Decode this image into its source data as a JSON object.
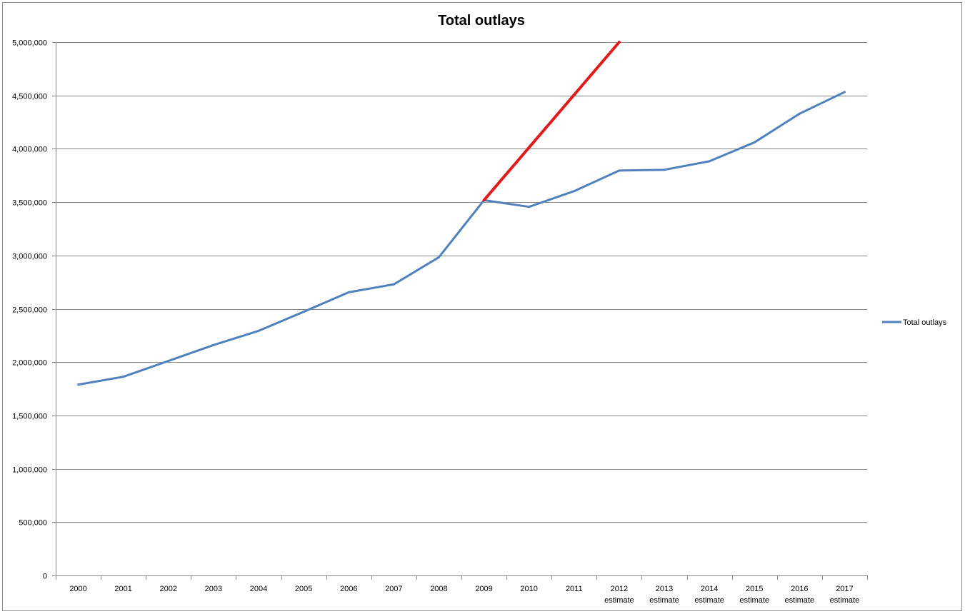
{
  "chart_data": {
    "type": "line",
    "title": "Total outlays",
    "xlabel": "",
    "ylabel": "",
    "categories": [
      "2000",
      "2001",
      "2002",
      "2003",
      "2004",
      "2005",
      "2006",
      "2007",
      "2008",
      "2009",
      "2010",
      "2011",
      "2012 estimate",
      "2013 estimate",
      "2014 estimate",
      "2015 estimate",
      "2016 estimate",
      "2017 estimate"
    ],
    "ylim": [
      0,
      5000000
    ],
    "yticks": [
      "0",
      "500,000",
      "1,000,000",
      "1,500,000",
      "2,000,000",
      "2,500,000",
      "3,000,000",
      "3,500,000",
      "4,000,000",
      "4,500,000",
      "5,000,000"
    ],
    "grid": true,
    "legend_position": "right",
    "series": [
      {
        "name": "Total outlays",
        "color": "#4f81bd",
        "values": [
          1789000,
          1863000,
          2011000,
          2160000,
          2293000,
          2472000,
          2655000,
          2729000,
          2983000,
          3518000,
          3456000,
          3603000,
          3796000,
          3803000,
          3883000,
          4060000,
          4329000,
          4532000
        ]
      }
    ],
    "annotations": [
      {
        "kind": "hand-drawn-line",
        "color": "#e31a1c",
        "from": {
          "category": "2009",
          "value": 3518000
        },
        "to": {
          "category": "2012 estimate",
          "value": 5000000
        }
      }
    ]
  }
}
